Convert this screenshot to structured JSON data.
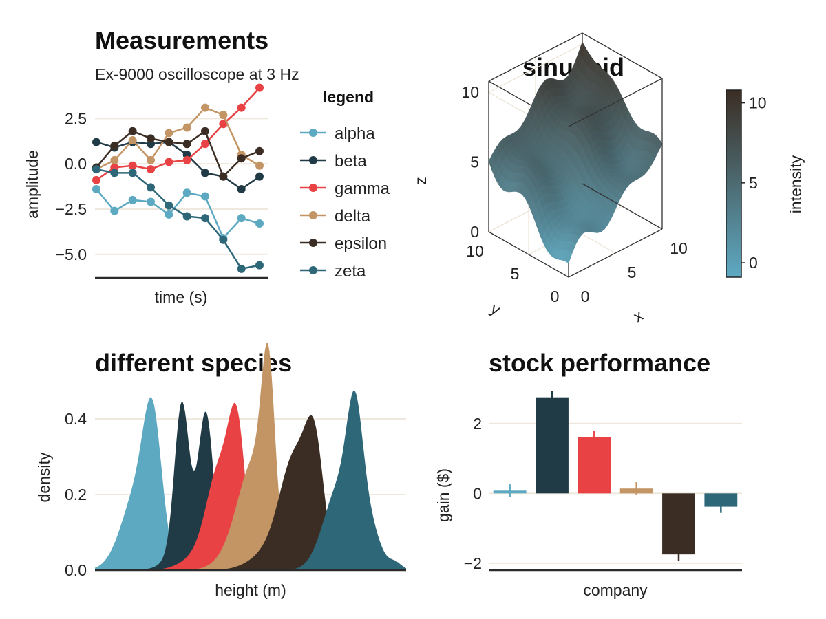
{
  "colors": {
    "alpha": "#5ea9c2",
    "beta": "#213b46",
    "gamma": "#e84245",
    "delta": "#c39565",
    "epsilon": "#3b2d23",
    "zeta": "#2d6778",
    "grid": "#efe8de",
    "spine": "#2b2b2b"
  },
  "chart_data": [
    {
      "id": "measurements",
      "type": "line",
      "title": "Measurements",
      "subtitle": "Ex-9000 oscilloscope at 3 Hz",
      "xlabel": "time (s)",
      "ylabel": "amplitude",
      "ylim": [
        -6.3,
        4.3
      ],
      "yticks": [
        2.5,
        0.0,
        -2.5,
        -5.0
      ],
      "ytick_labels": [
        "2.5",
        "0.0",
        "−2.5",
        "−5.0"
      ],
      "grid": true,
      "legend": {
        "title": "legend",
        "placement": "right"
      },
      "x": [
        1,
        2,
        3,
        4,
        5,
        6,
        7,
        8,
        9,
        10
      ],
      "series": [
        {
          "name": "alpha",
          "color_key": "alpha",
          "values": [
            -1.4,
            -2.6,
            -2.0,
            -2.1,
            -2.8,
            -1.6,
            -1.8,
            -4.1,
            -3.0,
            -3.3
          ]
        },
        {
          "name": "beta",
          "color_key": "beta",
          "values": [
            1.2,
            0.9,
            1.2,
            1.1,
            1.2,
            0.5,
            -0.5,
            -0.7,
            -1.4,
            -0.7
          ]
        },
        {
          "name": "gamma",
          "color_key": "gamma",
          "values": [
            -0.9,
            -0.2,
            -0.1,
            -0.3,
            0.1,
            0.2,
            1.1,
            2.2,
            3.1,
            4.2
          ]
        },
        {
          "name": "delta",
          "color_key": "delta",
          "values": [
            -0.3,
            0.2,
            1.3,
            0.2,
            1.7,
            2.0,
            3.1,
            2.7,
            0.5,
            -0.1
          ]
        },
        {
          "name": "epsilon",
          "color_key": "epsilon",
          "values": [
            -0.2,
            1.0,
            1.8,
            1.4,
            1.2,
            1.1,
            1.8,
            -0.7,
            0.3,
            0.7
          ]
        },
        {
          "name": "zeta",
          "color_key": "zeta",
          "values": [
            -0.3,
            -0.5,
            -0.5,
            -1.3,
            -2.3,
            -2.9,
            -3.0,
            -4.2,
            -5.8,
            -5.6
          ]
        }
      ]
    },
    {
      "id": "sinusoid",
      "type": "surface",
      "title": "sinusoid",
      "xlabel": "x",
      "ylabel": "y",
      "zlabel": "z",
      "xlim": [
        0,
        10
      ],
      "ylim": [
        0,
        10
      ],
      "zlim": [
        0,
        10.8
      ],
      "xticks": [
        "0",
        "5",
        "10"
      ],
      "yticks": [
        "0",
        "5",
        "10"
      ],
      "zticks": [
        "0",
        "5",
        "10"
      ],
      "colorbar": {
        "label": "intensity",
        "range": [
          -0.9,
          10.8
        ],
        "ticks": [
          0,
          5,
          10
        ],
        "tick_labels": [
          "0",
          "5",
          "10"
        ],
        "low": "#5ea9c2",
        "high": "#3b2d23"
      }
    },
    {
      "id": "species",
      "type": "area",
      "title": "different species",
      "xlabel": "height (m)",
      "ylabel": "density",
      "xlim": [
        0,
        14
      ],
      "ylim": [
        0,
        0.48
      ],
      "yticks": [
        0.0,
        0.2,
        0.4
      ],
      "ytick_labels": [
        "0.0",
        "0.2",
        "0.4"
      ],
      "grid": true,
      "series": [
        {
          "name": "alpha",
          "color_key": "alpha",
          "peaks": [
            [
              2.0,
              0.22,
              0.75
            ],
            [
              2.6,
              0.29,
              0.4
            ]
          ]
        },
        {
          "name": "beta",
          "color_key": "beta",
          "peaks": [
            [
              3.9,
              0.37,
              0.32
            ],
            [
              5.0,
              0.35,
              0.33
            ],
            [
              4.4,
              0.09,
              0.8
            ]
          ]
        },
        {
          "name": "gamma",
          "color_key": "gamma",
          "peaks": [
            [
              5.6,
              0.24,
              0.55
            ],
            [
              6.4,
              0.34,
              0.38
            ],
            [
              4.8,
              0.04,
              0.8
            ]
          ]
        },
        {
          "name": "delta",
          "color_key": "delta",
          "peaks": [
            [
              7.2,
              0.25,
              0.7
            ],
            [
              7.8,
              0.41,
              0.3
            ],
            [
              6.5,
              0.05,
              0.8
            ]
          ]
        },
        {
          "name": "epsilon",
          "color_key": "epsilon",
          "peaks": [
            [
              9.0,
              0.27,
              0.65
            ],
            [
              9.9,
              0.28,
              0.42
            ],
            [
              8.0,
              0.05,
              0.9
            ]
          ]
        },
        {
          "name": "zeta",
          "color_key": "zeta",
          "peaks": [
            [
              11.0,
              0.22,
              0.7
            ],
            [
              11.7,
              0.31,
              0.36
            ],
            [
              12.4,
              0.1,
              0.45
            ],
            [
              13.5,
              0.02,
              0.3
            ]
          ]
        }
      ]
    },
    {
      "id": "stocks",
      "type": "bar",
      "title": "stock performance",
      "xlabel": "company",
      "ylabel": "gain ($)",
      "ylim": [
        -2.2,
        3.0
      ],
      "yticks": [
        2,
        0,
        -2
      ],
      "ytick_labels": [
        "2",
        "0",
        "−2"
      ],
      "grid": true,
      "categories": [
        "alpha",
        "beta",
        "gamma",
        "delta",
        "epsilon",
        "zeta"
      ],
      "values": [
        0.08,
        2.75,
        1.62,
        0.14,
        -1.75,
        -0.38
      ],
      "errors": [
        0.18,
        0.18,
        0.18,
        0.18,
        0.18,
        0.18
      ]
    }
  ]
}
